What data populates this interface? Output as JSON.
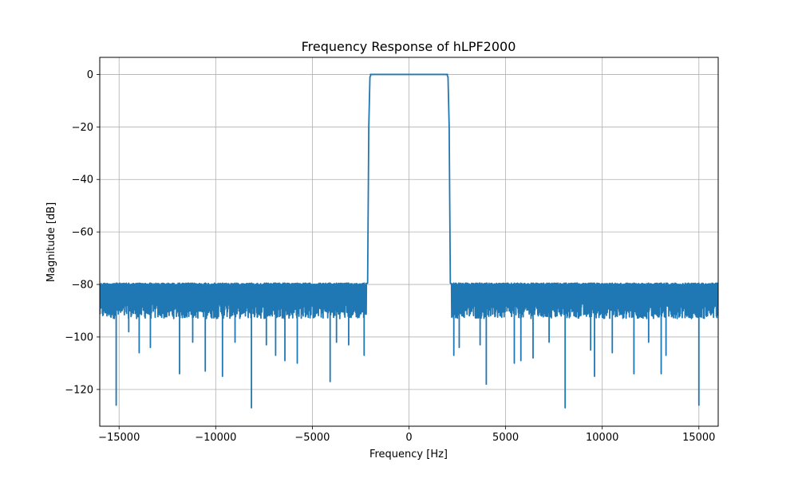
{
  "chart_data": {
    "type": "line",
    "title": "Frequency Response of hLPF2000",
    "xlabel": "Frequency [Hz]",
    "ylabel": "Magnitude [dB]",
    "xlim": [
      -16000,
      16000
    ],
    "ylim": [
      -134,
      6.5
    ],
    "xticks": [
      -15000,
      -10000,
      -5000,
      0,
      5000,
      10000,
      15000
    ],
    "xtick_labels": [
      "−15000",
      "−10000",
      "−5000",
      "0",
      "5000",
      "10000",
      "15000"
    ],
    "yticks": [
      0,
      -20,
      -40,
      -60,
      -80,
      -100,
      -120
    ],
    "ytick_labels": [
      "0",
      "−20",
      "−40",
      "−60",
      "−80",
      "−100",
      "−120"
    ],
    "grid": true,
    "series": [
      {
        "color": "#1f77b4",
        "passband": {
          "x_range": [
            -2000,
            2000
          ],
          "y": 0
        },
        "transition": [
          {
            "x": [
              -2250,
              -2140,
              -2080,
              -2020,
              -1960
            ],
            "y": [
              -80,
              -79.5,
              -20,
              -1,
              0
            ]
          },
          {
            "x": [
              1960,
              2020,
              2080,
              2140,
              2250
            ],
            "y": [
              0,
              -1,
              -20,
              -79.5,
              -80
            ]
          }
        ],
        "stopband": {
          "x_ranges": [
            [
              -16000,
              -2200
            ],
            [
              2200,
              16000
            ]
          ],
          "ripple_top": -79.5,
          "ripple_floor": -89
        },
        "deep_nulls": [
          {
            "x": -15150,
            "y": -126
          },
          {
            "x": -14500,
            "y": -98
          },
          {
            "x": -13960,
            "y": -106
          },
          {
            "x": -13380,
            "y": -104
          },
          {
            "x": -12550,
            "y": -108
          },
          {
            "x": -11870,
            "y": -114
          },
          {
            "x": -11190,
            "y": -102
          },
          {
            "x": -10540,
            "y": -113
          },
          {
            "x": -9650,
            "y": -115
          },
          {
            "x": -9000,
            "y": -102
          },
          {
            "x": -8150,
            "y": -127
          },
          {
            "x": -7380,
            "y": -103
          },
          {
            "x": -6900,
            "y": -107
          },
          {
            "x": -6420,
            "y": -109
          },
          {
            "x": -5780,
            "y": -110
          },
          {
            "x": -4690,
            "y": -116
          },
          {
            "x": -4080,
            "y": -117
          },
          {
            "x": -3750,
            "y": -102
          },
          {
            "x": -3120,
            "y": -103
          },
          {
            "x": -2320,
            "y": -107
          },
          {
            "x": 2320,
            "y": -107
          },
          {
            "x": 2600,
            "y": -104
          },
          {
            "x": 3680,
            "y": -103
          },
          {
            "x": 4000,
            "y": -118
          },
          {
            "x": 5450,
            "y": -110
          },
          {
            "x": 5790,
            "y": -109
          },
          {
            "x": 6420,
            "y": -108
          },
          {
            "x": 7250,
            "y": -102
          },
          {
            "x": 8080,
            "y": -127
          },
          {
            "x": 8650,
            "y": -100
          },
          {
            "x": 9400,
            "y": -105
          },
          {
            "x": 9600,
            "y": -115
          },
          {
            "x": 10520,
            "y": -106
          },
          {
            "x": 11640,
            "y": -114
          },
          {
            "x": 12400,
            "y": -102
          },
          {
            "x": 13050,
            "y": -114
          },
          {
            "x": 13300,
            "y": -107
          },
          {
            "x": 15000,
            "y": -126
          },
          {
            "x": 15850,
            "y": -98
          }
        ]
      }
    ]
  }
}
